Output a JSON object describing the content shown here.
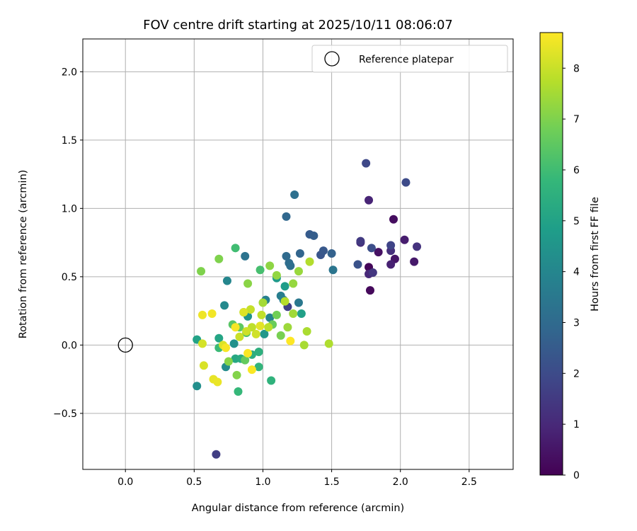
{
  "chart_data": {
    "type": "scatter",
    "title": "FOV centre drift starting at 2025/10/11 08:06:07",
    "xlabel": "Angular distance from reference (arcmin)",
    "ylabel": "Rotation from reference (arcmin)",
    "xlim": [
      -0.31,
      2.82
    ],
    "ylim": [
      -0.91,
      2.24
    ],
    "xticks": [
      0.0,
      0.5,
      1.0,
      1.5,
      2.0,
      2.5
    ],
    "xtick_labels": [
      "0.0",
      "0.5",
      "1.0",
      "1.5",
      "2.0",
      "2.5"
    ],
    "yticks": [
      -0.5,
      0.0,
      0.5,
      1.0,
      1.5,
      2.0
    ],
    "ytick_labels": [
      "−0.5",
      "0.0",
      "0.5",
      "1.0",
      "1.5",
      "2.0"
    ],
    "grid": true,
    "legend": {
      "placement": "top-right",
      "entries": [
        "Reference platepar"
      ]
    },
    "reference_point": {
      "label": "Reference platepar",
      "x": 0.0,
      "y": 0.0
    },
    "colormap": "viridis",
    "colorbar": {
      "label": "Hours from first FF file",
      "min": 0,
      "max": 8.7,
      "ticks": [
        0,
        1,
        2,
        3,
        4,
        5,
        6,
        7,
        8
      ],
      "tick_labels": [
        "0",
        "1",
        "2",
        "3",
        "4",
        "5",
        "6",
        "7",
        "8"
      ]
    },
    "points": [
      [
        1.77,
        0.57,
        0.1
      ],
      [
        1.78,
        0.4,
        0.2
      ],
      [
        1.95,
        0.92,
        0.3
      ],
      [
        1.84,
        0.68,
        0.4
      ],
      [
        1.96,
        0.63,
        0.5
      ],
      [
        2.1,
        0.61,
        0.6
      ],
      [
        2.03,
        0.77,
        0.7
      ],
      [
        1.93,
        0.59,
        0.8
      ],
      [
        1.77,
        1.06,
        0.9
      ],
      [
        1.77,
        0.52,
        1.0
      ],
      [
        1.71,
        0.75,
        1.1
      ],
      [
        1.93,
        0.69,
        1.2
      ],
      [
        2.12,
        0.72,
        1.3
      ],
      [
        1.8,
        0.53,
        1.4
      ],
      [
        1.71,
        0.76,
        1.5
      ],
      [
        0.66,
        -0.8,
        1.6
      ],
      [
        1.18,
        0.28,
        1.7
      ],
      [
        1.93,
        0.73,
        1.8
      ],
      [
        1.75,
        1.33,
        1.9
      ],
      [
        2.04,
        1.19,
        2.0
      ],
      [
        1.79,
        0.71,
        2.1
      ],
      [
        1.69,
        0.59,
        2.2
      ],
      [
        1.42,
        0.66,
        2.3
      ],
      [
        1.44,
        0.69,
        2.4
      ],
      [
        1.34,
        0.81,
        2.5
      ],
      [
        1.37,
        0.8,
        2.6
      ],
      [
        1.5,
        0.67,
        2.7
      ],
      [
        1.27,
        0.67,
        2.8
      ],
      [
        1.17,
        0.94,
        2.9
      ],
      [
        1.17,
        0.65,
        3.0
      ],
      [
        1.19,
        0.6,
        3.1
      ],
      [
        1.2,
        0.58,
        3.15
      ],
      [
        1.23,
        1.1,
        3.2
      ],
      [
        0.87,
        0.65,
        3.3
      ],
      [
        1.51,
        0.55,
        3.4
      ],
      [
        1.26,
        0.31,
        3.5
      ],
      [
        1.15,
        0.33,
        3.6
      ],
      [
        1.13,
        0.36,
        3.7
      ],
      [
        1.02,
        0.33,
        3.8
      ],
      [
        1.05,
        0.2,
        3.9
      ],
      [
        0.74,
        0.47,
        4.0
      ],
      [
        0.72,
        0.29,
        4.1
      ],
      [
        0.73,
        -0.16,
        4.2
      ],
      [
        0.52,
        -0.3,
        4.3
      ],
      [
        0.79,
        0.01,
        4.4
      ],
      [
        0.89,
        0.21,
        4.5
      ],
      [
        1.01,
        0.08,
        4.6
      ],
      [
        1.1,
        0.49,
        4.7
      ],
      [
        1.16,
        0.43,
        4.8
      ],
      [
        1.28,
        0.23,
        4.9
      ],
      [
        0.52,
        0.04,
        5.0
      ],
      [
        0.68,
        0.05,
        5.1
      ],
      [
        0.8,
        -0.1,
        5.2
      ],
      [
        0.84,
        -0.1,
        5.3
      ],
      [
        0.92,
        -0.07,
        5.4
      ],
      [
        0.97,
        -0.05,
        5.5
      ],
      [
        1.06,
        -0.26,
        5.6
      ],
      [
        0.97,
        -0.16,
        5.7
      ],
      [
        0.82,
        -0.34,
        5.8
      ],
      [
        0.68,
        -0.02,
        5.9
      ],
      [
        0.8,
        0.71,
        6.0
      ],
      [
        0.98,
        0.55,
        6.1
      ],
      [
        0.88,
        0.09,
        6.2
      ],
      [
        0.86,
        0.24,
        6.3
      ],
      [
        0.78,
        0.15,
        6.4
      ],
      [
        0.83,
        0.13,
        6.5
      ],
      [
        0.87,
        -0.11,
        6.6
      ],
      [
        1.07,
        0.15,
        6.7
      ],
      [
        1.1,
        0.22,
        6.8
      ],
      [
        1.13,
        0.07,
        6.9
      ],
      [
        0.55,
        0.54,
        7.0
      ],
      [
        0.68,
        0.63,
        7.0
      ],
      [
        0.81,
        -0.22,
        7.05
      ],
      [
        0.75,
        -0.12,
        7.1
      ],
      [
        0.89,
        0.45,
        7.15
      ],
      [
        1.05,
        0.58,
        7.2
      ],
      [
        1.1,
        0.51,
        7.25
      ],
      [
        1.22,
        0.45,
        7.3
      ],
      [
        1.26,
        0.54,
        7.35
      ],
      [
        1.18,
        0.13,
        7.4
      ],
      [
        1.22,
        0.23,
        7.45
      ],
      [
        1.0,
        0.31,
        7.5
      ],
      [
        1.3,
        0.0,
        7.55
      ],
      [
        1.32,
        0.1,
        7.6
      ],
      [
        1.48,
        0.01,
        7.65
      ],
      [
        1.34,
        0.61,
        7.7
      ],
      [
        1.16,
        0.32,
        7.75
      ],
      [
        1.04,
        0.13,
        7.8
      ],
      [
        0.92,
        0.13,
        7.85
      ],
      [
        0.99,
        0.22,
        7.9
      ],
      [
        0.91,
        0.26,
        7.95
      ],
      [
        0.83,
        0.06,
        8.0
      ],
      [
        0.88,
        0.1,
        8.05
      ],
      [
        0.95,
        0.08,
        8.1
      ],
      [
        0.56,
        0.01,
        8.15
      ],
      [
        0.57,
        -0.15,
        8.2
      ],
      [
        0.71,
        0.0,
        8.25
      ],
      [
        0.86,
        0.24,
        8.3
      ],
      [
        0.98,
        0.14,
        8.35
      ],
      [
        0.64,
        -0.25,
        8.4
      ],
      [
        0.67,
        -0.27,
        8.45
      ],
      [
        0.56,
        0.22,
        8.5
      ],
      [
        0.63,
        0.23,
        8.55
      ],
      [
        0.73,
        -0.02,
        8.6
      ],
      [
        0.8,
        0.13,
        8.6
      ],
      [
        0.89,
        -0.06,
        8.65
      ],
      [
        0.92,
        -0.18,
        8.65
      ],
      [
        1.2,
        0.03,
        8.7
      ]
    ]
  }
}
